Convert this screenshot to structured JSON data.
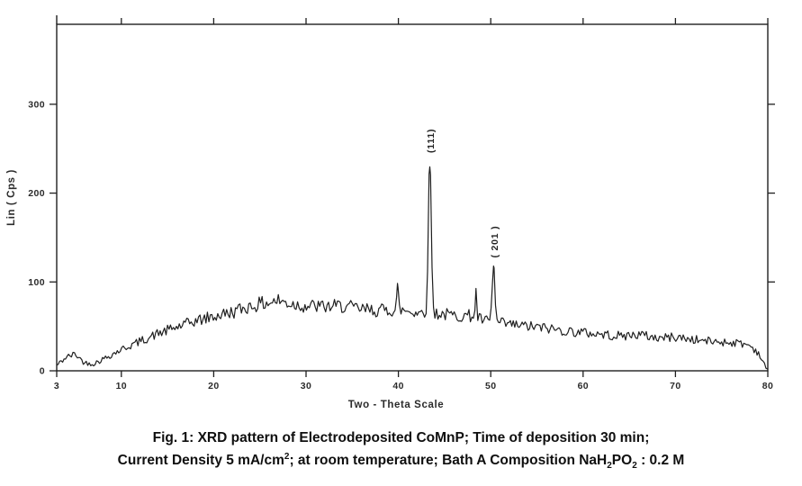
{
  "caption": {
    "line1": "Fig. 1: XRD pattern of Electrodeposited CoMnP; Time of deposition 30 min;",
    "line2": {
      "p1": "Current Density 5 mA/cm",
      "sup1": "2",
      "p2": "; at room temperature; Bath A Composition NaH",
      "sub1": "2",
      "p3": "PO",
      "sub2": "2",
      "p4": " : 0.2 M"
    }
  },
  "chart_data": {
    "type": "line",
    "title": "",
    "xlabel": "Two - Theta Scale",
    "ylabel": "Lin ( Cps )",
    "xlim": [
      3,
      80
    ],
    "ylim": [
      0,
      390
    ],
    "x_ticks": [
      3,
      10,
      20,
      30,
      40,
      50,
      60,
      70,
      80
    ],
    "y_ticks": [
      0,
      100,
      200,
      300
    ],
    "grid": false,
    "legend": false,
    "line_color": "#1f1f1f",
    "peaks": [
      {
        "label": "(111)",
        "two_theta": 43.4,
        "intensity": 236,
        "width": 0.22
      },
      {
        "label": "( 201 )",
        "two_theta": 50.3,
        "intensity": 118,
        "width": 0.2
      }
    ],
    "minor_spikes": [
      {
        "two_theta": 39.9,
        "intensity": 95
      },
      {
        "two_theta": 48.4,
        "intensity": 88
      }
    ],
    "baseline": [
      [
        3,
        6
      ],
      [
        4,
        15
      ],
      [
        5,
        19
      ],
      [
        6,
        9
      ],
      [
        7,
        8
      ],
      [
        8,
        13
      ],
      [
        10,
        24
      ],
      [
        12,
        33
      ],
      [
        14,
        42
      ],
      [
        16,
        49
      ],
      [
        18,
        56
      ],
      [
        20,
        61
      ],
      [
        22,
        66
      ],
      [
        24,
        73
      ],
      [
        26,
        77
      ],
      [
        27,
        79
      ],
      [
        28,
        76
      ],
      [
        30,
        73
      ],
      [
        32,
        72
      ],
      [
        34,
        73
      ],
      [
        36,
        69
      ],
      [
        38,
        68
      ],
      [
        40,
        69
      ],
      [
        42,
        66
      ],
      [
        44,
        65
      ],
      [
        46,
        62
      ],
      [
        48,
        62
      ],
      [
        49,
        57
      ],
      [
        50,
        55
      ],
      [
        52,
        52
      ],
      [
        54,
        50
      ],
      [
        56,
        48
      ],
      [
        58,
        45
      ],
      [
        60,
        43
      ],
      [
        62,
        41
      ],
      [
        64,
        39
      ],
      [
        66,
        41
      ],
      [
        68,
        37
      ],
      [
        70,
        38
      ],
      [
        72,
        35
      ],
      [
        74,
        33
      ],
      [
        76,
        32
      ],
      [
        77,
        31
      ],
      [
        78,
        29
      ],
      [
        79,
        20
      ],
      [
        79.6,
        7
      ],
      [
        80,
        1
      ]
    ],
    "noise": {
      "amplitude": 7,
      "seed": 42,
      "step": 0.16
    }
  }
}
